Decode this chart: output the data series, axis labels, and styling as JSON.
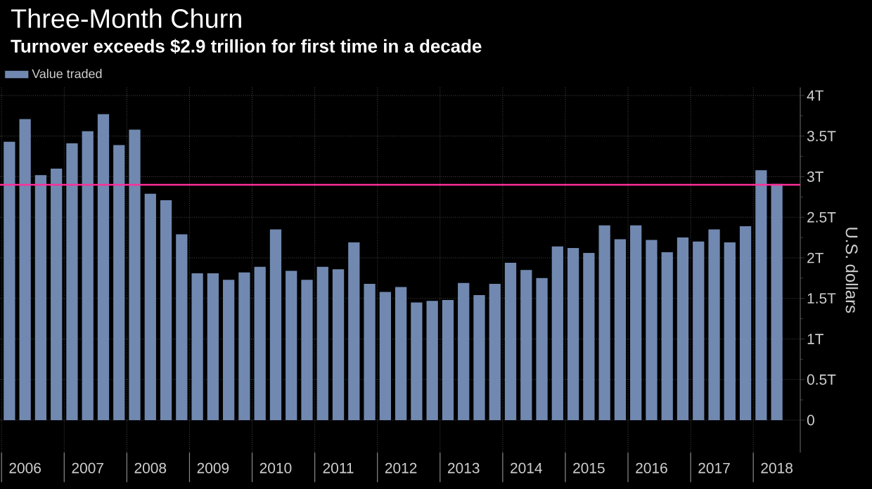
{
  "chart_data": {
    "type": "bar",
    "title": "Three-Month Churn",
    "subtitle": "Turnover exceeds $2.9 trillion for first time in a decade",
    "ylabel": "U.S. dollars",
    "categories": [
      null,
      "2006",
      null,
      null,
      null,
      "2007",
      null,
      null,
      null,
      "2008",
      null,
      null,
      null,
      "2009",
      null,
      null,
      null,
      "2010",
      null,
      null,
      null,
      "2011",
      null,
      null,
      null,
      "2012",
      null,
      null,
      null,
      "2013",
      null,
      null,
      null,
      "2014",
      null,
      null,
      null,
      "2015",
      null,
      null,
      null,
      "2016",
      null,
      null,
      null,
      "2017",
      null,
      null,
      null,
      "2018"
    ],
    "series": [
      {
        "name": "Value traded",
        "color": "#7189b0",
        "values": [
          3.43,
          3.71,
          3.02,
          3.1,
          3.41,
          3.56,
          3.77,
          3.39,
          3.58,
          2.79,
          2.71,
          2.29,
          1.81,
          1.81,
          1.73,
          1.82,
          1.89,
          2.35,
          1.84,
          1.73,
          1.89,
          1.86,
          2.19,
          1.68,
          1.58,
          1.64,
          1.45,
          1.47,
          1.48,
          1.69,
          1.54,
          1.68,
          1.94,
          1.85,
          1.75,
          2.14,
          2.12,
          2.06,
          2.4,
          2.23,
          2.4,
          2.22,
          2.07,
          2.25,
          2.2,
          2.35,
          2.19,
          2.39,
          3.08,
          2.91
        ]
      }
    ],
    "ylim": [
      -0.4,
      4.1
    ],
    "yticks": [
      0,
      {
        "value": 0.5,
        "label": "0.5T"
      },
      {
        "value": 1,
        "label": "1T"
      },
      {
        "value": 1.5,
        "label": "1.5T"
      },
      {
        "value": 2,
        "label": "2T"
      },
      {
        "value": 2.5,
        "label": "2.5T"
      },
      {
        "value": 3,
        "label": "3T"
      },
      {
        "value": 3.5,
        "label": "3.5T"
      },
      {
        "value": 4,
        "label": "4T"
      }
    ],
    "ref_lines": [
      {
        "axis": "y",
        "value": 2.9,
        "color": "#ff2e9a"
      }
    ],
    "grid": true,
    "legend": "top left"
  }
}
